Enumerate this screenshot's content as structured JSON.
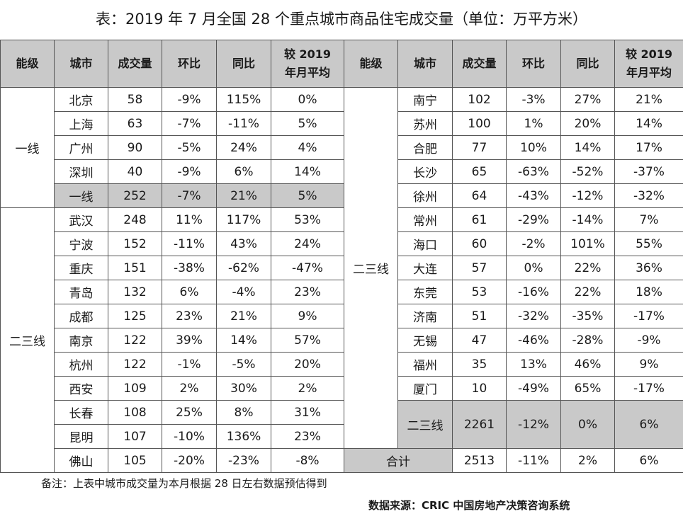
{
  "title": "表：2019 年 7 月全国 28 个重点城市商品住宅成交量（单位：万平方米）",
  "headers": {
    "level": "能级",
    "city": "城市",
    "volume": "成交量",
    "mom": "环比",
    "yoy": "同比",
    "vs_avg_line1": "较 2019",
    "vs_avg_line2": "年月平均"
  },
  "left": {
    "tier1_label": "一线",
    "tier1_rows": [
      {
        "city": "北京",
        "volume": "58",
        "mom": "-9%",
        "yoy": "115%",
        "vs": "0%"
      },
      {
        "city": "上海",
        "volume": "63",
        "mom": "-7%",
        "yoy": "-11%",
        "vs": "5%"
      },
      {
        "city": "广州",
        "volume": "90",
        "mom": "-5%",
        "yoy": "24%",
        "vs": "4%"
      },
      {
        "city": "深圳",
        "volume": "40",
        "mom": "-9%",
        "yoy": "6%",
        "vs": "14%"
      }
    ],
    "tier1_subtotal": {
      "city": "一线",
      "volume": "252",
      "mom": "-7%",
      "yoy": "21%",
      "vs": "5%"
    },
    "tier23_label": "二三线",
    "tier23_rows": [
      {
        "city": "武汉",
        "volume": "248",
        "mom": "11%",
        "yoy": "117%",
        "vs": "53%"
      },
      {
        "city": "宁波",
        "volume": "152",
        "mom": "-11%",
        "yoy": "43%",
        "vs": "24%"
      },
      {
        "city": "重庆",
        "volume": "151",
        "mom": "-38%",
        "yoy": "-62%",
        "vs": "-47%"
      },
      {
        "city": "青岛",
        "volume": "132",
        "mom": "6%",
        "yoy": "-4%",
        "vs": "23%"
      },
      {
        "city": "成都",
        "volume": "125",
        "mom": "23%",
        "yoy": "21%",
        "vs": "9%"
      },
      {
        "city": "南京",
        "volume": "122",
        "mom": "39%",
        "yoy": "14%",
        "vs": "57%"
      },
      {
        "city": "杭州",
        "volume": "122",
        "mom": "-1%",
        "yoy": "-5%",
        "vs": "20%"
      },
      {
        "city": "西安",
        "volume": "109",
        "mom": "2%",
        "yoy": "30%",
        "vs": "2%"
      },
      {
        "city": "长春",
        "volume": "108",
        "mom": "25%",
        "yoy": "8%",
        "vs": "31%"
      },
      {
        "city": "昆明",
        "volume": "107",
        "mom": "-10%",
        "yoy": "136%",
        "vs": "23%"
      },
      {
        "city": "佛山",
        "volume": "105",
        "mom": "-20%",
        "yoy": "-23%",
        "vs": "-8%"
      }
    ]
  },
  "right": {
    "tier23_label": "二三线",
    "rows": [
      {
        "city": "南宁",
        "volume": "102",
        "mom": "-3%",
        "yoy": "27%",
        "vs": "21%"
      },
      {
        "city": "苏州",
        "volume": "100",
        "mom": "1%",
        "yoy": "20%",
        "vs": "14%"
      },
      {
        "city": "合肥",
        "volume": "77",
        "mom": "10%",
        "yoy": "14%",
        "vs": "17%"
      },
      {
        "city": "长沙",
        "volume": "65",
        "mom": "-63%",
        "yoy": "-52%",
        "vs": "-37%"
      },
      {
        "city": "徐州",
        "volume": "64",
        "mom": "-43%",
        "yoy": "-12%",
        "vs": "-32%"
      },
      {
        "city": "常州",
        "volume": "61",
        "mom": "-29%",
        "yoy": "-14%",
        "vs": "7%"
      },
      {
        "city": "海口",
        "volume": "60",
        "mom": "-2%",
        "yoy": "101%",
        "vs": "55%"
      },
      {
        "city": "大连",
        "volume": "57",
        "mom": "0%",
        "yoy": "22%",
        "vs": "36%"
      },
      {
        "city": "东莞",
        "volume": "53",
        "mom": "-16%",
        "yoy": "22%",
        "vs": "18%"
      },
      {
        "city": "济南",
        "volume": "51",
        "mom": "-32%",
        "yoy": "-35%",
        "vs": "-17%"
      },
      {
        "city": "无锡",
        "volume": "47",
        "mom": "-46%",
        "yoy": "-28%",
        "vs": "-9%"
      },
      {
        "city": "福州",
        "volume": "35",
        "mom": "13%",
        "yoy": "46%",
        "vs": "9%"
      },
      {
        "city": "厦门",
        "volume": "10",
        "mom": "-49%",
        "yoy": "65%",
        "vs": "-17%"
      }
    ],
    "tier23_subtotal": {
      "city": "二三线",
      "volume": "2261",
      "mom": "-12%",
      "yoy": "0%",
      "vs": "6%"
    },
    "total": {
      "label": "合计",
      "volume": "2513",
      "mom": "-11%",
      "yoy": "2%",
      "vs": "6%"
    }
  },
  "note": "备注：上表中城市成交量为本月根据 28 日左右数据预估得到",
  "source": "数据来源：CRIC 中国房地产决策咨询系统",
  "colors": {
    "header_bg": "#c9c9c9",
    "subtotal_bg": "#c9c9c9",
    "border": "#555555"
  }
}
